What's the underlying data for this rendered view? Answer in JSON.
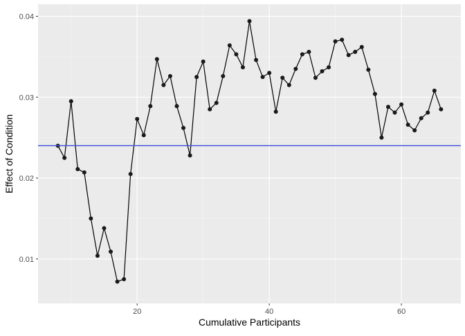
{
  "chart_data": {
    "type": "line",
    "title": "",
    "xlabel": "Cumulative Participants",
    "ylabel": "Effect of Condition",
    "xlim": [
      5,
      69
    ],
    "ylim": [
      0.0045,
      0.0415
    ],
    "x_ticks": [
      20,
      40,
      60
    ],
    "x_tick_labels": [
      "20",
      "40",
      "60"
    ],
    "y_ticks": [
      0.01,
      0.02,
      0.03,
      0.04
    ],
    "y_tick_labels": [
      "0.01",
      "0.02",
      "0.03",
      "0.04"
    ],
    "grid": true,
    "series": [
      {
        "x": [
          8,
          9,
          10,
          11,
          12,
          13,
          14,
          15,
          16,
          17,
          18,
          19,
          20,
          21,
          22,
          23,
          24,
          25,
          26,
          27,
          28,
          29,
          30,
          31,
          32,
          33,
          34,
          35,
          36,
          37,
          38,
          39,
          40,
          41,
          42,
          43,
          44,
          45,
          46,
          47,
          48,
          49,
          50,
          51,
          52,
          53,
          54,
          55,
          56,
          57,
          58,
          59,
          60,
          61,
          62,
          63,
          64,
          65,
          66
        ],
        "values": [
          0.024,
          0.0225,
          0.0295,
          0.0211,
          0.0207,
          0.015,
          0.0104,
          0.0138,
          0.0109,
          0.0072,
          0.0075,
          0.0205,
          0.0273,
          0.0253,
          0.0289,
          0.0347,
          0.0315,
          0.0326,
          0.0289,
          0.0262,
          0.0228,
          0.0325,
          0.0344,
          0.0285,
          0.0293,
          0.0326,
          0.0364,
          0.0353,
          0.0337,
          0.0394,
          0.0346,
          0.0325,
          0.033,
          0.0282,
          0.0324,
          0.0315,
          0.0335,
          0.0353,
          0.0356,
          0.0324,
          0.0332,
          0.0337,
          0.0369,
          0.0371,
          0.0352,
          0.0356,
          0.0362,
          0.0334,
          0.0304,
          0.025,
          0.0288,
          0.0281,
          0.0291,
          0.0266,
          0.0259,
          0.0274,
          0.0281,
          0.0308,
          0.0285
        ]
      }
    ],
    "reference_line": {
      "y": 0.024,
      "orientation": "horizontal"
    }
  },
  "colors": {
    "panel_background": "#ebebeb",
    "grid_major": "#ffffff",
    "grid_minor": "#f5f5f5",
    "series_line": "#000000",
    "series_point": "#1a1a1a",
    "reference_line": "#3f51d6",
    "tick_label": "#4d4d4d",
    "axis_title": "#000000"
  }
}
